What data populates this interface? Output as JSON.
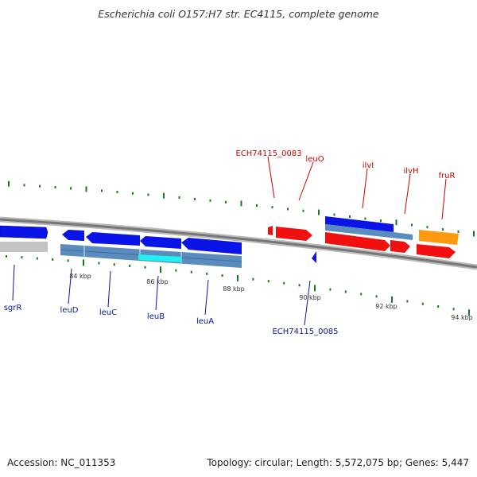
{
  "title": "Escherichia coli O157:H7 str. EC4115, complete genome",
  "footer": {
    "accession_label": "Accession: NC_011353",
    "topology_label": "Topology: circular; Length: 5,572,075 bp; Genes: 5,447"
  },
  "colors": {
    "background": "#ffffff",
    "tick_green": "#1a7a1a",
    "blue_gene": "#0a14e6",
    "red_gene": "#f01010",
    "orange_gene": "#ff9a10",
    "cds_steel": "#5a8cbe",
    "cds_highlight": "#20f0f0",
    "grey_gene": "#c0c0c0",
    "backbone": "#8a8a8a",
    "label_red": "#cc0000",
    "label_blue": "#0a14a0"
  },
  "ticks": {
    "labels": [
      "84 kbp",
      "86 kbp",
      "88 kbp",
      "90 kbp",
      "92 kbp",
      "94 kbp"
    ]
  },
  "genes": {
    "top": [
      {
        "name": "ECH74115_0083"
      },
      {
        "name": "leuO"
      },
      {
        "name": "ilvI"
      },
      {
        "name": "ilvH"
      },
      {
        "name": "fruR"
      }
    ],
    "bottom": [
      {
        "name": "sgrR"
      },
      {
        "name": "leuD"
      },
      {
        "name": "leuC"
      },
      {
        "name": "leuB"
      },
      {
        "name": "leuA"
      },
      {
        "name": "ECH74115_0085"
      }
    ]
  }
}
